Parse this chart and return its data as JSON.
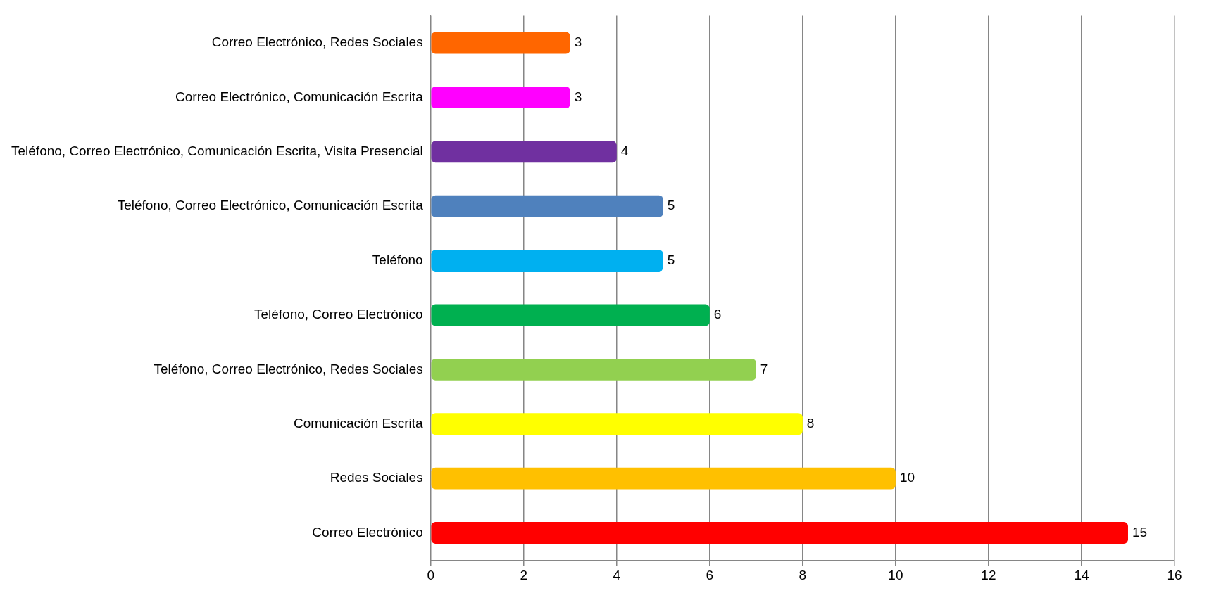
{
  "chart_data": {
    "type": "bar",
    "orientation": "horizontal",
    "categories": [
      "Correo Electrónico, Redes Sociales",
      "Correo Electrónico, Comunicación Escrita",
      "Teléfono, Correo Electrónico, Comunicación Escrita, Visita Presencial",
      "Teléfono, Correo Electrónico, Comunicación Escrita",
      "Teléfono",
      "Teléfono, Correo Electrónico",
      "Teléfono, Correo Electrónico, Redes Sociales",
      "Comunicación Escrita",
      "Redes Sociales",
      "Correo Electrónico"
    ],
    "values": [
      3,
      3,
      4,
      5,
      5,
      6,
      7,
      8,
      10,
      15
    ],
    "colors": [
      "#ff6600",
      "#ff00ff",
      "#7030a0",
      "#4f81bd",
      "#00b0f0",
      "#00b050",
      "#92d050",
      "#ffff00",
      "#ffc000",
      "#ff0000"
    ],
    "xlim": [
      0,
      16
    ],
    "xticks": [
      0,
      2,
      4,
      6,
      8,
      10,
      12,
      14,
      16
    ],
    "grid": "x",
    "data_labels": true,
    "legend": false
  }
}
